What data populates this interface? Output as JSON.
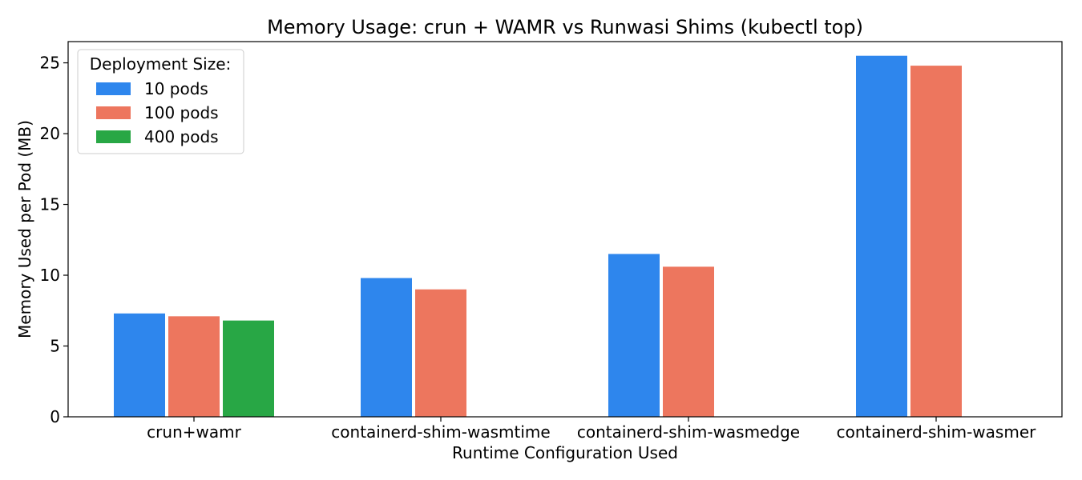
{
  "chart_data": {
    "type": "bar",
    "title": "Memory Usage: crun + WAMR vs Runwasi Shims (kubectl top)",
    "xlabel": "Runtime Configuration Used",
    "ylabel": "Memory Used per Pod (MB)",
    "categories": [
      "crun+wamr",
      "containerd-shim-wasmtime",
      "containerd-shim-wasmedge",
      "containerd-shim-wasmer"
    ],
    "highlight_category_color": "#ff0000",
    "series": [
      {
        "name": "10 pods",
        "color": "#2e86ed",
        "values": [
          7.3,
          9.8,
          11.5,
          25.5
        ]
      },
      {
        "name": "100 pods",
        "color": "#ed765e",
        "values": [
          7.1,
          9.0,
          10.6,
          24.8
        ]
      },
      {
        "name": "400 pods",
        "color": "#28a745",
        "values": [
          6.8,
          null,
          null,
          null
        ]
      }
    ],
    "ylim": [
      0,
      26.5
    ],
    "yticks": [
      0,
      5,
      10,
      15,
      20,
      25
    ],
    "grid": false,
    "legend": {
      "title": "Deployment Size:",
      "placement": "top-left"
    }
  }
}
